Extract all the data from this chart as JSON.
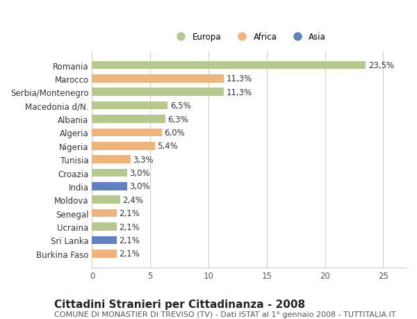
{
  "categories": [
    "Burkina Faso",
    "Sri Lanka",
    "Ucraina",
    "Senegal",
    "Moldova",
    "India",
    "Croazia",
    "Tunisia",
    "Nigeria",
    "Algeria",
    "Albania",
    "Macedonia d/N.",
    "Serbia/Montenegro",
    "Marocco",
    "Romania"
  ],
  "values": [
    2.1,
    2.1,
    2.1,
    2.1,
    2.4,
    3.0,
    3.0,
    3.3,
    5.4,
    6.0,
    6.3,
    6.5,
    11.3,
    11.3,
    23.5
  ],
  "labels": [
    "2,1%",
    "2,1%",
    "2,1%",
    "2,1%",
    "2,4%",
    "3,0%",
    "3,0%",
    "3,3%",
    "5,4%",
    "6,0%",
    "6,3%",
    "6,5%",
    "11,3%",
    "11,3%",
    "23,5%"
  ],
  "continents": [
    "Africa",
    "Asia",
    "Europa",
    "Africa",
    "Europa",
    "Asia",
    "Europa",
    "Africa",
    "Africa",
    "Africa",
    "Europa",
    "Europa",
    "Europa",
    "Africa",
    "Europa"
  ],
  "colors": {
    "Europa": "#b5c98e",
    "Africa": "#f0b47a",
    "Asia": "#6080c0"
  },
  "xlim": [
    0,
    27
  ],
  "xticks": [
    0,
    5,
    10,
    15,
    20,
    25
  ],
  "title": "Cittadini Stranieri per Cittadinanza - 2008",
  "subtitle": "COMUNE DI MONASTIER DI TREVISO (TV) - Dati ISTAT al 1° gennaio 2008 - TUTTITALIA.IT",
  "bg_color": "#ffffff",
  "grid_color": "#cccccc",
  "bar_height": 0.6,
  "label_fontsize": 8.5,
  "tick_fontsize": 8.5,
  "title_fontsize": 11,
  "subtitle_fontsize": 8
}
